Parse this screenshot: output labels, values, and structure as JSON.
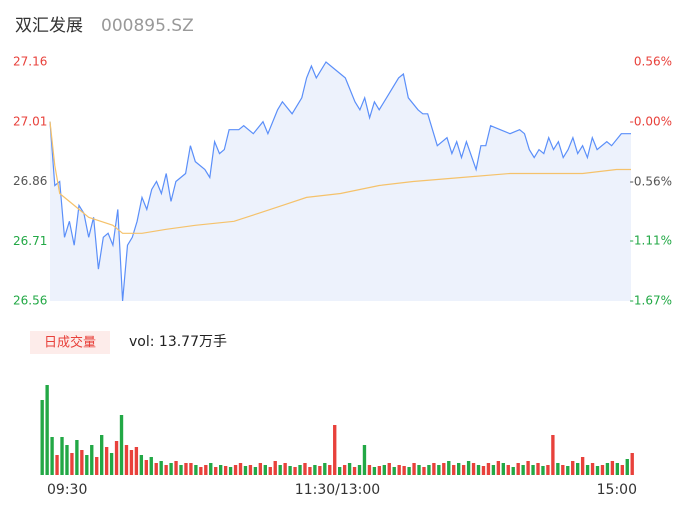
{
  "header": {
    "name": "双汇发展",
    "code": "000895.SZ"
  },
  "chart_data": [
    {
      "type": "line",
      "xlim": [
        0,
        240
      ],
      "ylim": [
        26.56,
        27.16
      ],
      "yticks": [
        27.16,
        27.01,
        26.86,
        26.71,
        26.56
      ],
      "ytick_colors": [
        "#e8413b",
        "#e8413b",
        "#555555",
        "#22a845",
        "#22a845"
      ],
      "y2lim": [
        -1.67,
        0.56
      ],
      "y2ticks": [
        {
          "value": 0.56,
          "label": "0.56%"
        },
        {
          "value": 0,
          "label": "-0.00%"
        },
        {
          "value": -0.56,
          "label": "-0.56%"
        },
        {
          "value": -1.11,
          "label": "-1.11%"
        },
        {
          "value": -1.67,
          "label": "-1.67%"
        }
      ],
      "y2tick_colors": [
        "#e8413b",
        "#e8413b",
        "#555555",
        "#22a845",
        "#22a845"
      ],
      "series": [
        {
          "color": "#5b8ff9",
          "fill": "#edf2fc",
          "x": [
            0,
            2,
            4,
            6,
            8,
            10,
            12,
            14,
            16,
            18,
            20,
            22,
            24,
            26,
            28,
            30,
            32,
            34,
            36,
            38,
            40,
            42,
            44,
            46,
            48,
            50,
            52,
            56,
            58,
            60,
            64,
            66,
            68,
            70,
            72,
            74,
            78,
            80,
            84,
            88,
            90,
            94,
            96,
            100,
            104,
            106,
            108,
            110,
            114,
            118,
            122,
            126,
            128,
            130,
            132,
            134,
            136,
            140,
            144,
            146,
            148,
            152,
            154,
            156,
            160,
            164,
            166,
            168,
            170,
            172,
            176,
            178,
            180,
            182,
            186,
            190,
            194,
            196,
            198,
            200,
            202,
            204,
            206,
            208,
            210,
            212,
            214,
            216,
            218,
            220,
            222,
            224,
            226,
            230,
            232,
            236,
            240
          ],
          "values": [
            27.01,
            26.85,
            26.86,
            26.72,
            26.76,
            26.7,
            26.8,
            26.78,
            26.72,
            26.77,
            26.64,
            26.72,
            26.73,
            26.7,
            26.79,
            26.56,
            26.7,
            26.72,
            26.76,
            26.82,
            26.79,
            26.84,
            26.86,
            26.83,
            26.88,
            26.81,
            26.86,
            26.88,
            26.95,
            26.91,
            26.89,
            26.87,
            26.96,
            26.93,
            26.94,
            26.99,
            26.99,
            27.0,
            26.98,
            27.01,
            26.98,
            27.04,
            27.06,
            27.03,
            27.07,
            27.12,
            27.15,
            27.12,
            27.16,
            27.14,
            27.12,
            27.06,
            27.04,
            27.07,
            27.02,
            27.06,
            27.04,
            27.08,
            27.12,
            27.13,
            27.07,
            27.04,
            27.03,
            27.03,
            26.95,
            26.97,
            26.93,
            26.96,
            26.92,
            26.96,
            26.89,
            26.95,
            26.95,
            27.0,
            26.99,
            26.98,
            26.99,
            26.98,
            26.94,
            26.92,
            26.94,
            26.93,
            26.97,
            26.94,
            26.96,
            26.92,
            26.94,
            26.97,
            26.93,
            26.95,
            26.92,
            26.97,
            26.94,
            26.96,
            26.95,
            26.98,
            26.98
          ]
        },
        {
          "color": "#f5c26b",
          "x": [
            0,
            2,
            4,
            10,
            16,
            26,
            30,
            38,
            48,
            60,
            76,
            86,
            96,
            106,
            120,
            136,
            150,
            170,
            190,
            220,
            234,
            240
          ],
          "values": [
            27.01,
            26.9,
            26.83,
            26.8,
            26.77,
            26.75,
            26.73,
            26.73,
            26.74,
            26.75,
            26.76,
            26.78,
            26.8,
            26.82,
            26.83,
            26.85,
            26.86,
            26.87,
            26.88,
            26.88,
            26.89,
            26.89
          ]
        }
      ]
    },
    {
      "type": "bar",
      "label": "日成交量",
      "annotation": "vol: 13.77万手",
      "xlim": [
        0,
        240
      ],
      "xticks": [
        {
          "value": 0,
          "label": "09:30"
        },
        {
          "value": 120,
          "label": "11:30/13:00"
        },
        {
          "value": 240,
          "label": "15:00"
        }
      ],
      "values": [
        75,
        90,
        38,
        20,
        38,
        30,
        22,
        35,
        25,
        20,
        30,
        18,
        40,
        28,
        22,
        34,
        60,
        30,
        25,
        28,
        20,
        15,
        18,
        12,
        14,
        10,
        12,
        14,
        10,
        12,
        12,
        10,
        8,
        10,
        12,
        8,
        10,
        9,
        8,
        10,
        12,
        9,
        10,
        8,
        12,
        10,
        8,
        14,
        10,
        12,
        9,
        8,
        10,
        12,
        8,
        10,
        9,
        12,
        10,
        50,
        8,
        10,
        12,
        8,
        10,
        30,
        10,
        8,
        9,
        10,
        12,
        8,
        10,
        9,
        8,
        12,
        10,
        8,
        10,
        12,
        10,
        12,
        14,
        10,
        12,
        10,
        14,
        12,
        10,
        9,
        12,
        10,
        14,
        12,
        10,
        8,
        12,
        10,
        14,
        10,
        12,
        9,
        10,
        40,
        12,
        10,
        9,
        14,
        12,
        18,
        10,
        12,
        9,
        10,
        12,
        14,
        12,
        10,
        16,
        22
      ],
      "colors": [
        "#22a845",
        "#22a845",
        "#22a845",
        "#e8413b",
        "#22a845",
        "#22a845",
        "#e8413b",
        "#22a845",
        "#e8413b",
        "#22a845",
        "#22a845",
        "#e8413b",
        "#22a845",
        "#e8413b",
        "#22a845",
        "#e8413b",
        "#22a845",
        "#e8413b",
        "#e8413b",
        "#e8413b",
        "#22a845",
        "#e8413b",
        "#22a845",
        "#e8413b",
        "#22a845",
        "#e8413b",
        "#22a845",
        "#e8413b",
        "#22a845",
        "#e8413b",
        "#e8413b",
        "#22a845",
        "#e8413b",
        "#e8413b",
        "#22a845",
        "#e8413b",
        "#22a845",
        "#e8413b",
        "#22a845",
        "#e8413b",
        "#e8413b",
        "#22a845",
        "#e8413b",
        "#22a845",
        "#e8413b",
        "#22a845",
        "#e8413b",
        "#e8413b",
        "#22a845",
        "#e8413b",
        "#22a845",
        "#e8413b",
        "#22a845",
        "#e8413b",
        "#e8413b",
        "#22a845",
        "#e8413b",
        "#22a845",
        "#e8413b",
        "#e8413b",
        "#22a845",
        "#e8413b",
        "#22a845",
        "#e8413b",
        "#22a845",
        "#22a845",
        "#e8413b",
        "#22a845",
        "#e8413b",
        "#22a845",
        "#e8413b",
        "#22a845",
        "#e8413b",
        "#e8413b",
        "#22a845",
        "#e8413b",
        "#22a845",
        "#e8413b",
        "#22a845",
        "#e8413b",
        "#22a845",
        "#e8413b",
        "#22a845",
        "#e8413b",
        "#22a845",
        "#e8413b",
        "#22a845",
        "#e8413b",
        "#22a845",
        "#e8413b",
        "#e8413b",
        "#22a845",
        "#e8413b",
        "#22a845",
        "#e8413b",
        "#22a845",
        "#e8413b",
        "#22a845",
        "#e8413b",
        "#22a845",
        "#e8413b",
        "#22a845",
        "#e8413b",
        "#e8413b",
        "#22a845",
        "#e8413b",
        "#22a845",
        "#e8413b",
        "#22a845",
        "#e8413b",
        "#22a845",
        "#e8413b",
        "#22a845",
        "#e8413b",
        "#22a845",
        "#e8413b",
        "#22a845",
        "#e8413b",
        "#22a845",
        "#e8413b"
      ]
    }
  ]
}
